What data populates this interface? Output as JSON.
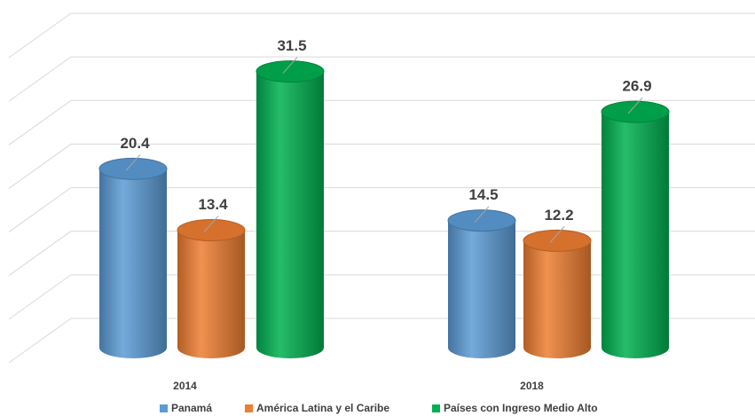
{
  "chart_data": {
    "type": "bar3d-cylinder",
    "categories": [
      "2014",
      "2018"
    ],
    "series": [
      {
        "name": "Panamá",
        "color": "#5b9bd5",
        "values": [
          20.4,
          14.5
        ]
      },
      {
        "name": "América Latina y el Caribe",
        "color": "#ed7d31",
        "values": [
          13.4,
          12.2
        ]
      },
      {
        "name": "Países con Ingreso Medio Alto",
        "color": "#00b050",
        "values": [
          31.5,
          26.9
        ]
      }
    ],
    "ylim": [
      0,
      35
    ],
    "yticks": [
      0,
      5,
      10,
      15,
      20,
      25,
      30,
      35
    ],
    "grid": true,
    "legend": "bottom"
  }
}
